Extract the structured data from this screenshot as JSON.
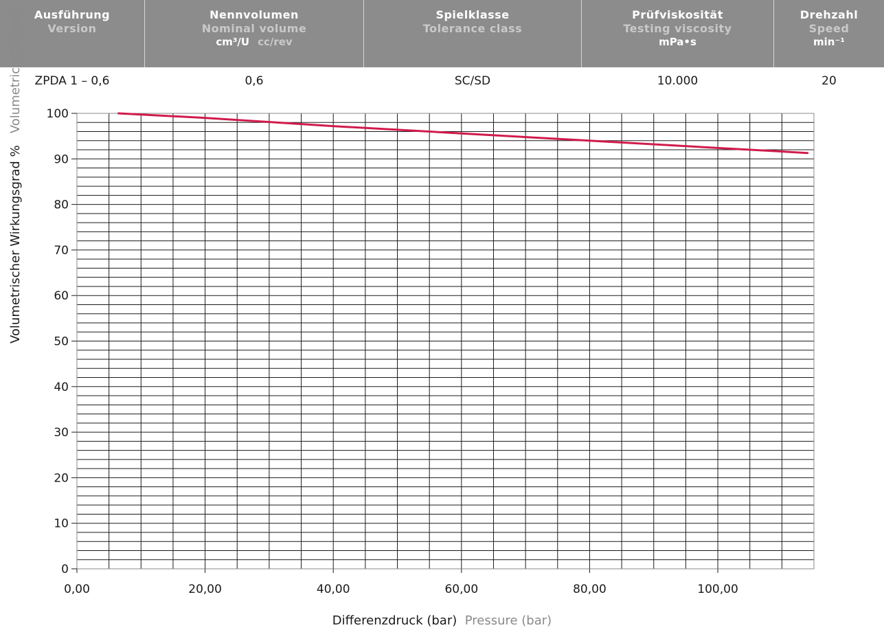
{
  "header": {
    "col_version_de": "Ausführung",
    "col_version_en": "Version",
    "col_volume_de": "Nennvolumen",
    "col_volume_en": "Nominal volume",
    "col_volume_unit": "cm³/U",
    "col_volume_unit_en": "cc/rev",
    "col_tolerance_de": "Spielklasse",
    "col_tolerance_en": "Tolerance class",
    "col_viscosity_de": "Prüfviskosität",
    "col_viscosity_en": "Testing viscosity",
    "col_viscosity_unit": "mPa•s",
    "col_speed_de": "Drehzahl",
    "col_speed_en": "Speed",
    "col_speed_unit": "min⁻¹"
  },
  "values": {
    "version": "ZPDA 1 – 0,6",
    "volume": "0,6",
    "tolerance": "SC/SD",
    "viscosity": "10.000",
    "speed": "20"
  },
  "colors": {
    "header_bg": "#8c8c8c",
    "line": "#d11b4c",
    "grid": "#1a1a1a"
  },
  "chart_data": {
    "type": "line",
    "ylabel_de": "Volumetrischer Wirkungsgrad %",
    "ylabel_en": "Volumetric efficiency %",
    "xlabel_de": "Differenzdruck (bar)",
    "xlabel_en": "Pressure (bar)",
    "xlim": [
      0,
      115
    ],
    "ylim": [
      0,
      100
    ],
    "x_ticks": [
      "0,00",
      "20,00",
      "40,00",
      "60,00",
      "80,00",
      "100,00"
    ],
    "x_tick_values": [
      0,
      20,
      40,
      60,
      80,
      100
    ],
    "y_ticks": [
      0,
      10,
      20,
      30,
      40,
      50,
      60,
      70,
      80,
      90,
      100
    ],
    "grid": true,
    "series": [
      {
        "x": [
          6.5,
          20,
          40,
          60,
          80,
          100,
          114
        ],
        "y": [
          100,
          99.0,
          97.2,
          95.6,
          94.0,
          92.4,
          91.3
        ]
      }
    ]
  }
}
